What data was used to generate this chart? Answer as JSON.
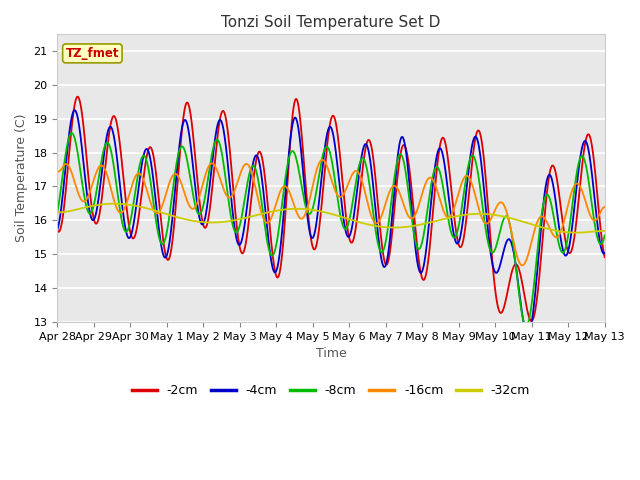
{
  "title": "Tonzi Soil Temperature Set D",
  "xlabel": "Time",
  "ylabel": "Soil Temperature (C)",
  "ylim": [
    13.0,
    21.5
  ],
  "yticks": [
    13.0,
    14.0,
    15.0,
    16.0,
    17.0,
    18.0,
    19.0,
    20.0,
    21.0
  ],
  "figure_bg": "#ffffff",
  "plot_bg_color": "#e8e8e8",
  "legend_label": "TZ_fmet",
  "legend_box_color": "#ffffc0",
  "legend_box_edge": "#999900",
  "series_labels": [
    "-2cm",
    "-4cm",
    "-8cm",
    "-16cm",
    "-32cm"
  ],
  "series_colors": [
    "#dd0000",
    "#0000cc",
    "#00bb00",
    "#ff8800",
    "#cccc00"
  ],
  "line_width": 1.3,
  "x_tick_labels": [
    "Apr 28",
    "Apr 29",
    "Apr 30",
    "May 1",
    "May 2",
    "May 3",
    "May 4",
    "May 5",
    "May 6",
    "May 7",
    "May 8",
    "May 9",
    "May 10",
    "May 11",
    "May 12",
    "May 13"
  ]
}
